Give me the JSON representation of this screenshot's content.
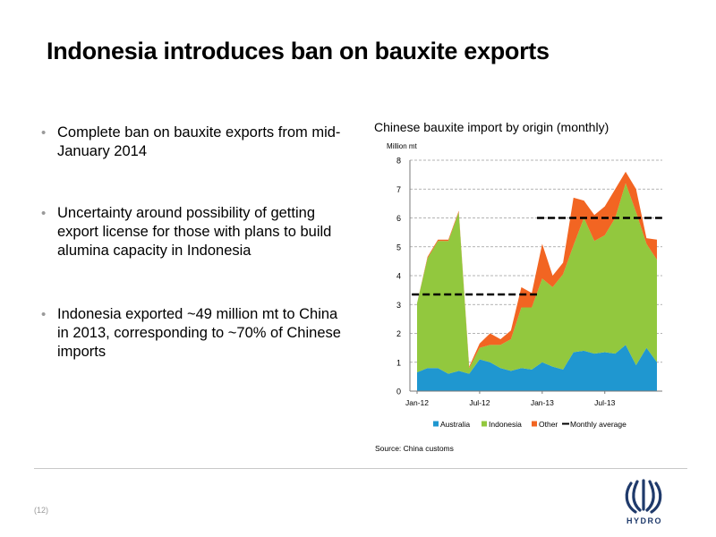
{
  "slide": {
    "title": "Indonesia introduces ban on bauxite exports",
    "page_number": "(12)",
    "logo_text": "HYDRO"
  },
  "bullets": [
    {
      "text": "Complete ban on bauxite exports from mid-January 2014"
    },
    {
      "text": "Uncertainty around possibility of getting export license for those with plans to build alumina capacity in Indonesia"
    },
    {
      "text": "Indonesia exported ~49 million mt to China in 2013, corresponding to ~70% of Chinese imports"
    }
  ],
  "chart": {
    "title": "Chinese bauxite import by origin (monthly)",
    "unit_label": "Million mt",
    "source": "Source: China customs"
  },
  "chart_data": {
    "type": "area",
    "stacked": true,
    "title": "Chinese bauxite import by origin (monthly)",
    "ylabel": "Million mt",
    "ylim": [
      0,
      8
    ],
    "yticks": [
      0,
      1,
      2,
      3,
      4,
      5,
      6,
      7,
      8
    ],
    "grid": true,
    "legend_position": "bottom",
    "x": [
      "Jan-12",
      "Feb-12",
      "Mar-12",
      "Apr-12",
      "May-12",
      "Jun-12",
      "Jul-12",
      "Aug-12",
      "Sep-12",
      "Oct-12",
      "Nov-12",
      "Dec-12",
      "Jan-13",
      "Feb-13",
      "Mar-13",
      "Apr-13",
      "May-13",
      "Jun-13",
      "Jul-13",
      "Aug-13",
      "Sep-13",
      "Oct-13",
      "Nov-13",
      "Dec-13"
    ],
    "xtick_labels": [
      "Jan-12",
      "Jul-12",
      "Jan-13",
      "Jul-13"
    ],
    "series": [
      {
        "name": "Australia",
        "color": "#1f97d0",
        "values": [
          0.65,
          0.8,
          0.8,
          0.6,
          0.7,
          0.6,
          1.1,
          1.0,
          0.8,
          0.7,
          0.8,
          0.75,
          1.0,
          0.85,
          0.75,
          1.35,
          1.4,
          1.3,
          1.35,
          1.3,
          1.6,
          0.9,
          1.5,
          1.0
        ]
      },
      {
        "name": "Indonesia",
        "color": "#92c83e",
        "values": [
          2.4,
          3.8,
          4.4,
          4.6,
          5.5,
          0.2,
          0.4,
          0.6,
          0.8,
          1.1,
          2.1,
          2.15,
          2.9,
          2.75,
          3.3,
          3.7,
          4.6,
          3.9,
          4.05,
          4.7,
          5.6,
          5.3,
          3.6,
          3.55
        ]
      },
      {
        "name": "Other",
        "color": "#f26522",
        "values": [
          0.0,
          0.05,
          0.05,
          0.05,
          0.05,
          0.05,
          0.15,
          0.4,
          0.2,
          0.3,
          0.7,
          0.5,
          1.2,
          0.4,
          0.4,
          1.65,
          0.6,
          0.9,
          1.0,
          1.0,
          0.4,
          0.8,
          0.2,
          0.7
        ]
      }
    ],
    "monthly_average": [
      {
        "period": "2012",
        "value": 3.35
      },
      {
        "period": "2013",
        "value": 6.0
      }
    ],
    "legend": [
      "Australia",
      "Indonesia",
      "Other",
      "Monthly average"
    ]
  }
}
